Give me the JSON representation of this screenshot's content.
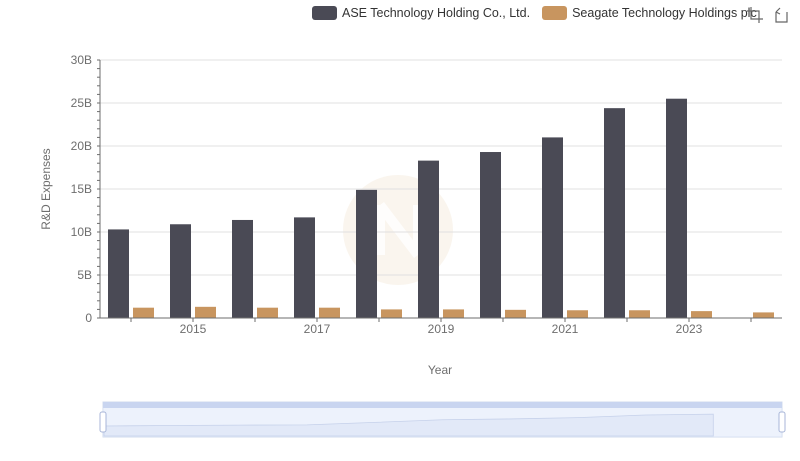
{
  "chart_data": {
    "type": "bar",
    "x": [
      2014,
      2015,
      2016,
      2017,
      2018,
      2019,
      2020,
      2021,
      2022,
      2023,
      2024
    ],
    "x_tick_labels": [
      "2015",
      "2017",
      "2019",
      "2021",
      "2023"
    ],
    "y_tick_labels": [
      "0",
      "5B",
      "10B",
      "15B",
      "20B",
      "25B",
      "30B"
    ],
    "xlabel": "Year",
    "ylabel": "R&D Expenses",
    "ylim": [
      0,
      30000000000
    ],
    "legend_position": "top-right",
    "grid": true,
    "series": [
      {
        "name": "ASE Technology Holding Co., Ltd.",
        "color": "#4a4a55",
        "values": [
          10300000000,
          10900000000,
          11400000000,
          11700000000,
          14900000000,
          18300000000,
          19300000000,
          21000000000,
          24400000000,
          25500000000,
          null
        ]
      },
      {
        "name": "Seagate Technology Holdings plc",
        "color": "#c8955f",
        "values": [
          1200000000,
          1300000000,
          1200000000,
          1200000000,
          1000000000,
          1000000000,
          950000000,
          900000000,
          900000000,
          800000000,
          650000000
        ]
      }
    ]
  },
  "toolbox": {
    "icons": [
      "zoom-icon",
      "restore-icon"
    ]
  }
}
